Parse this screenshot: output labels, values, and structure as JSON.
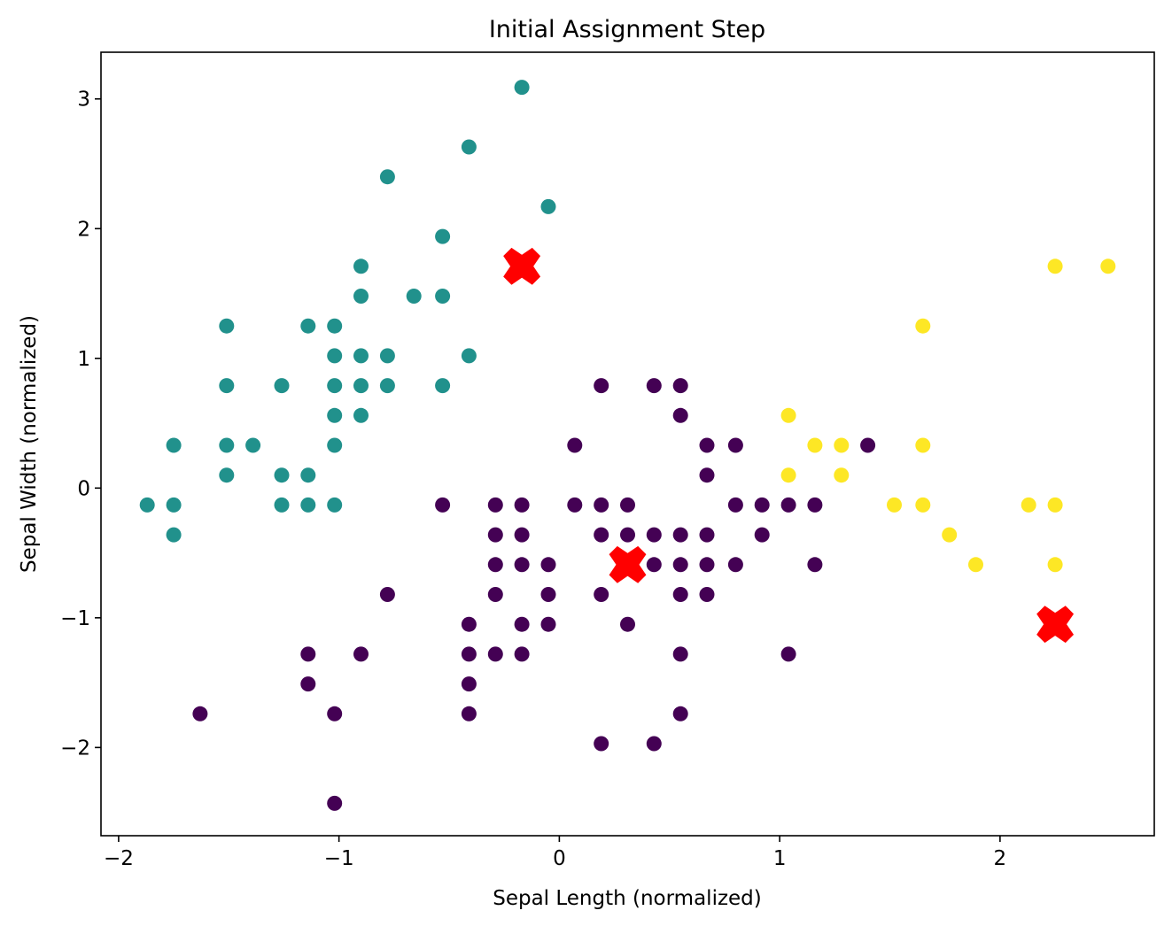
{
  "chart_data": {
    "type": "scatter",
    "title": "Initial Assignment Step",
    "xlabel": "Sepal Length (normalized)",
    "ylabel": "Sepal Width (normalized)",
    "xlim": [
      -2.08,
      2.7
    ],
    "ylim": [
      -2.68,
      3.36
    ],
    "xticks": [
      -2,
      -1,
      0,
      1,
      2
    ],
    "xtick_labels": [
      "−2",
      "−1",
      "0",
      "1",
      "2"
    ],
    "yticks": [
      -2,
      -1,
      0,
      1,
      2,
      3
    ],
    "ytick_labels": [
      "−2",
      "−1",
      "0",
      "1",
      "2",
      "3"
    ],
    "grid": false,
    "cluster_colors": [
      "#440154",
      "#21918c",
      "#fde725"
    ],
    "centroid_color": "#ff0000",
    "series": [
      {
        "cluster": 0,
        "points": [
          [
            0.19,
            0.79
          ],
          [
            0.43,
            0.79
          ],
          [
            0.55,
            0.79
          ],
          [
            0.55,
            0.56
          ],
          [
            0.07,
            0.33
          ],
          [
            0.67,
            0.33
          ],
          [
            0.8,
            0.33
          ],
          [
            1.4,
            0.33
          ],
          [
            0.67,
            0.1
          ],
          [
            -0.53,
            -0.13
          ],
          [
            -0.29,
            -0.13
          ],
          [
            -0.17,
            -0.13
          ],
          [
            0.07,
            -0.13
          ],
          [
            0.19,
            -0.13
          ],
          [
            0.31,
            -0.13
          ],
          [
            0.8,
            -0.13
          ],
          [
            0.92,
            -0.13
          ],
          [
            1.04,
            -0.13
          ],
          [
            1.16,
            -0.13
          ],
          [
            -0.29,
            -0.36
          ],
          [
            -0.17,
            -0.36
          ],
          [
            0.19,
            -0.36
          ],
          [
            0.31,
            -0.36
          ],
          [
            0.43,
            -0.36
          ],
          [
            0.55,
            -0.36
          ],
          [
            0.67,
            -0.36
          ],
          [
            0.92,
            -0.36
          ],
          [
            -0.29,
            -0.59
          ],
          [
            -0.17,
            -0.59
          ],
          [
            -0.05,
            -0.59
          ],
          [
            0.43,
            -0.59
          ],
          [
            0.55,
            -0.59
          ],
          [
            0.67,
            -0.59
          ],
          [
            0.8,
            -0.59
          ],
          [
            1.16,
            -0.59
          ],
          [
            -0.78,
            -0.82
          ],
          [
            -0.29,
            -0.82
          ],
          [
            -0.05,
            -0.82
          ],
          [
            0.19,
            -0.82
          ],
          [
            0.55,
            -0.82
          ],
          [
            0.67,
            -0.82
          ],
          [
            -0.41,
            -1.05
          ],
          [
            -0.17,
            -1.05
          ],
          [
            -0.05,
            -1.05
          ],
          [
            0.31,
            -1.05
          ],
          [
            -1.14,
            -1.28
          ],
          [
            -0.9,
            -1.28
          ],
          [
            -0.41,
            -1.28
          ],
          [
            -0.29,
            -1.28
          ],
          [
            -0.17,
            -1.28
          ],
          [
            0.55,
            -1.28
          ],
          [
            1.04,
            -1.28
          ],
          [
            -1.14,
            -1.51
          ],
          [
            -0.41,
            -1.51
          ],
          [
            -1.63,
            -1.74
          ],
          [
            -1.02,
            -1.74
          ],
          [
            -0.41,
            -1.74
          ],
          [
            0.55,
            -1.74
          ],
          [
            0.19,
            -1.97
          ],
          [
            0.43,
            -1.97
          ],
          [
            -1.02,
            -2.43
          ]
        ]
      },
      {
        "cluster": 1,
        "points": [
          [
            -0.17,
            3.09
          ],
          [
            -0.41,
            2.63
          ],
          [
            -0.78,
            2.4
          ],
          [
            -0.05,
            2.17
          ],
          [
            -0.53,
            1.94
          ],
          [
            -0.9,
            1.71
          ],
          [
            -0.9,
            1.48
          ],
          [
            -0.66,
            1.48
          ],
          [
            -0.53,
            1.48
          ],
          [
            -1.51,
            1.25
          ],
          [
            -1.14,
            1.25
          ],
          [
            -1.02,
            1.25
          ],
          [
            -1.02,
            1.02
          ],
          [
            -0.9,
            1.02
          ],
          [
            -0.78,
            1.02
          ],
          [
            -0.41,
            1.02
          ],
          [
            -1.51,
            0.79
          ],
          [
            -1.26,
            0.79
          ],
          [
            -1.02,
            0.79
          ],
          [
            -0.9,
            0.79
          ],
          [
            -0.78,
            0.79
          ],
          [
            -0.53,
            0.79
          ],
          [
            -1.02,
            0.56
          ],
          [
            -0.9,
            0.56
          ],
          [
            -1.75,
            0.33
          ],
          [
            -1.51,
            0.33
          ],
          [
            -1.39,
            0.33
          ],
          [
            -1.02,
            0.33
          ],
          [
            -1.51,
            0.1
          ],
          [
            -1.26,
            0.1
          ],
          [
            -1.14,
            0.1
          ],
          [
            -1.87,
            -0.13
          ],
          [
            -1.75,
            -0.13
          ],
          [
            -1.26,
            -0.13
          ],
          [
            -1.14,
            -0.13
          ],
          [
            -1.02,
            -0.13
          ],
          [
            -1.75,
            -0.36
          ]
        ]
      },
      {
        "cluster": 2,
        "points": [
          [
            2.25,
            1.71
          ],
          [
            2.49,
            1.71
          ],
          [
            1.65,
            1.25
          ],
          [
            1.04,
            0.56
          ],
          [
            1.16,
            0.33
          ],
          [
            1.28,
            0.33
          ],
          [
            1.65,
            0.33
          ],
          [
            1.04,
            0.1
          ],
          [
            1.28,
            0.1
          ],
          [
            1.52,
            -0.13
          ],
          [
            1.65,
            -0.13
          ],
          [
            2.13,
            -0.13
          ],
          [
            2.25,
            -0.13
          ],
          [
            1.77,
            -0.36
          ],
          [
            1.89,
            -0.59
          ],
          [
            2.25,
            -0.59
          ]
        ]
      }
    ],
    "centroids": [
      [
        -0.17,
        1.71
      ],
      [
        0.31,
        -0.59
      ],
      [
        2.25,
        -1.05
      ]
    ]
  }
}
